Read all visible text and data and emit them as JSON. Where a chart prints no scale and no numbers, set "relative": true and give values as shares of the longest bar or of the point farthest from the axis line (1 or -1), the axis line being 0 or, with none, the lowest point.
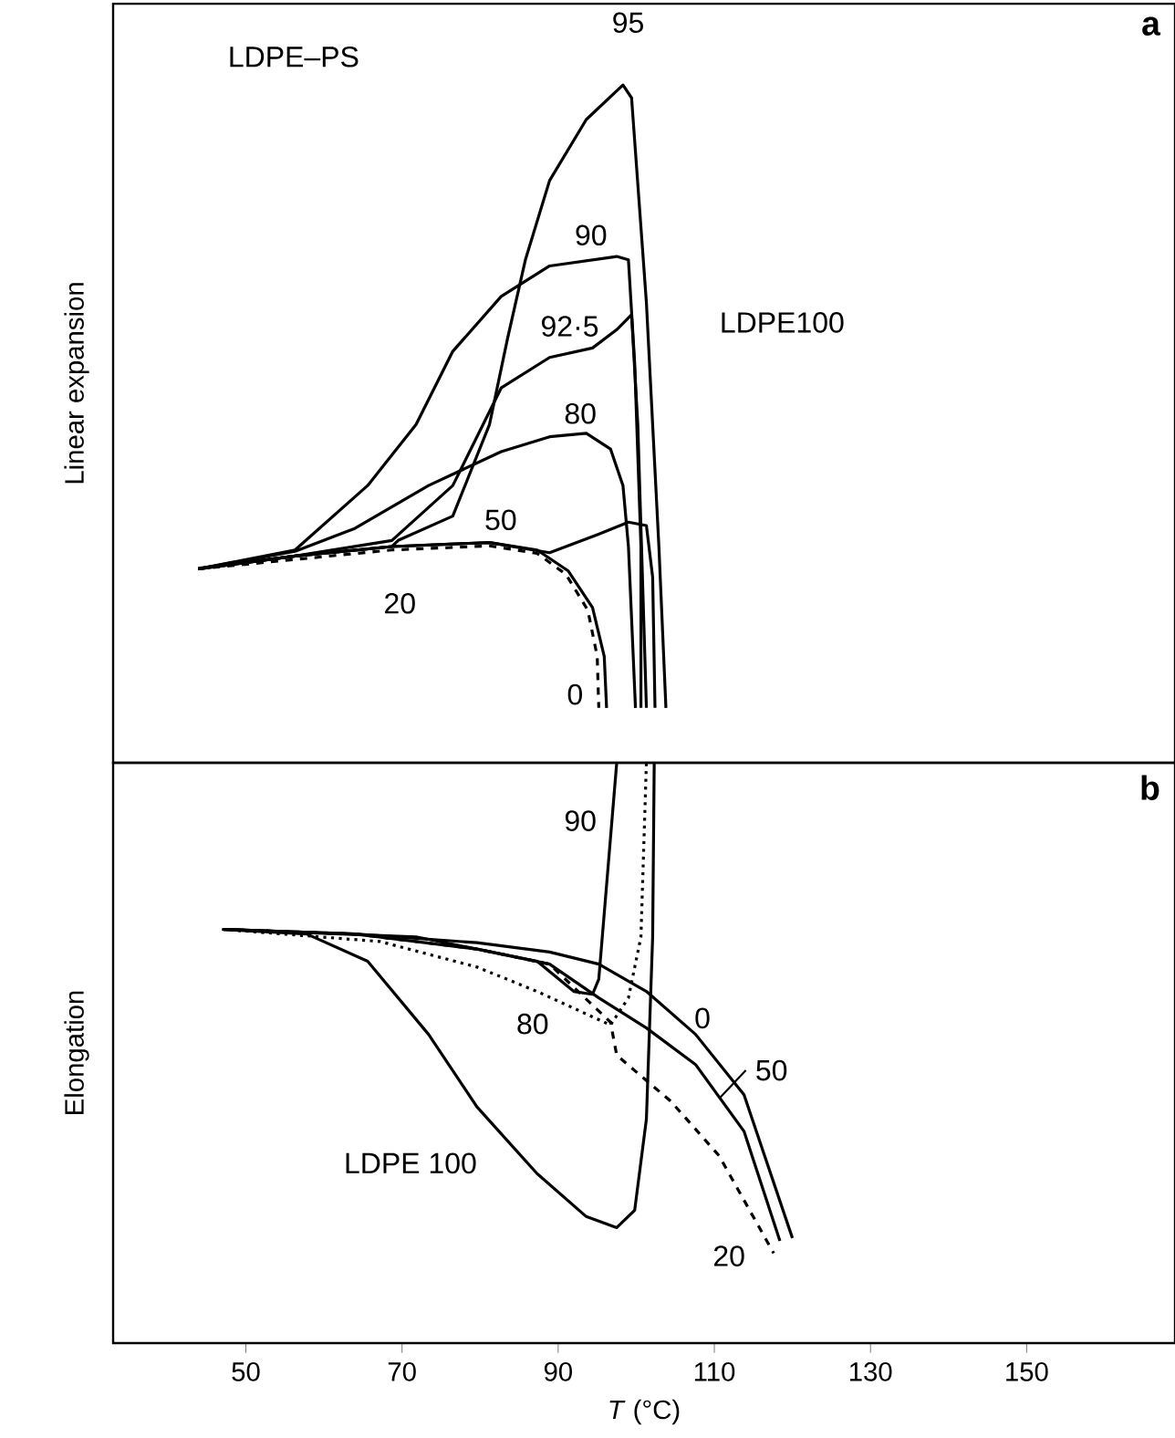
{
  "chart_data": [
    {
      "type": "line",
      "title": "a",
      "ylabel": "Linear expansion",
      "relative": true,
      "xlim": [
        33,
        169
      ],
      "xticks": [
        50,
        70,
        90,
        110,
        130,
        150
      ],
      "tick_labels": false,
      "grid": false,
      "series": [
        {
          "name": "95",
          "color": "#000000",
          "line_style": "solid",
          "x": [
            43.9,
            56.3,
            68.7,
            69.5,
            76.5,
            81.2,
            83.5,
            85.8,
            88.9,
            93.6,
            98.3,
            99.4,
            101.3,
            102.9,
            103.8
          ],
          "values": [
            0.286,
            0.305,
            0.319,
            0.328,
            0.364,
            0.499,
            0.625,
            0.742,
            0.859,
            0.949,
            1.0,
            0.981,
            0.679,
            0.319,
            0.081
          ]
        },
        {
          "name": "90",
          "color": "#000000",
          "line_style": "solid",
          "x": [
            43.9,
            56.3,
            65.6,
            71.8,
            76.5,
            82.7,
            88.9,
            97.5,
            99.0,
            99.8,
            100.6,
            100.6
          ],
          "values": [
            0.286,
            0.314,
            0.409,
            0.499,
            0.607,
            0.688,
            0.733,
            0.747,
            0.742,
            0.589,
            0.319,
            0.081
          ]
        },
        {
          "name": "92·5",
          "color": "#000000",
          "line_style": "solid",
          "x": [
            43.9,
            56.3,
            68.7,
            76.5,
            82.7,
            88.9,
            94.4,
            97.5,
            99.4,
            100.2,
            101.3
          ],
          "values": [
            0.286,
            0.305,
            0.328,
            0.409,
            0.553,
            0.598,
            0.612,
            0.639,
            0.661,
            0.499,
            0.081
          ]
        },
        {
          "name": "80",
          "color": "#000000",
          "line_style": "solid",
          "x": [
            43.9,
            56.3,
            64.0,
            73.4,
            82.7,
            88.9,
            93.6,
            96.7,
            98.3,
            99.0,
            99.9
          ],
          "values": [
            0.286,
            0.312,
            0.346,
            0.409,
            0.459,
            0.481,
            0.486,
            0.463,
            0.409,
            0.319,
            0.081
          ]
        },
        {
          "name": "50",
          "color": "#000000",
          "line_style": "solid",
          "x": [
            43.9,
            56.3,
            68.7,
            81.2,
            88.9,
            95.1,
            99.0,
            101.3,
            102.1,
            102.4
          ],
          "values": [
            0.286,
            0.305,
            0.319,
            0.325,
            0.31,
            0.337,
            0.355,
            0.35,
            0.274,
            0.081
          ]
        },
        {
          "name": "20",
          "color": "#000000",
          "line_style": "dashed",
          "x": [
            43.9,
            56.3,
            68.7,
            81.2,
            87.3,
            91.0,
            93.8,
            95.0,
            95.2
          ],
          "values": [
            0.286,
            0.3,
            0.314,
            0.32,
            0.309,
            0.278,
            0.225,
            0.157,
            0.081
          ]
        },
        {
          "name": "0",
          "color": "#000000",
          "line_style": "solid",
          "x": [
            43.9,
            56.3,
            68.7,
            81.2,
            87.3,
            91.3,
            94.4,
            95.9,
            96.2
          ],
          "values": [
            0.287,
            0.305,
            0.319,
            0.325,
            0.314,
            0.283,
            0.229,
            0.157,
            0.081
          ]
        }
      ],
      "annotations": [
        "LDPE–PS",
        "LDPE100"
      ]
    },
    {
      "type": "line",
      "title": "b",
      "ylabel": "Elongation",
      "xlabel": "*T* (°C)",
      "relative": true,
      "xlim": [
        33,
        169
      ],
      "xticks": [
        50,
        70,
        90,
        110,
        130,
        150
      ],
      "tick_labels": "x",
      "grid": false,
      "series": [
        {
          "name": "0",
          "color": "#000000",
          "line_style": "solid",
          "x": [
            47.0,
            64.0,
            79.6,
            88.9,
            95.2,
            101.3,
            107.6,
            113.8,
            120.0
          ],
          "values": [
            0.713,
            0.705,
            0.69,
            0.674,
            0.653,
            0.606,
            0.532,
            0.428,
            0.181
          ]
        },
        {
          "name": "50",
          "color": "#000000",
          "line_style": "solid",
          "x": [
            47.0,
            64.0,
            79.6,
            88.9,
            95.2,
            101.3,
            107.6,
            113.8,
            118.4
          ],
          "values": [
            0.713,
            0.705,
            0.679,
            0.653,
            0.595,
            0.543,
            0.48,
            0.365,
            0.176
          ]
        },
        {
          "name": "20",
          "color": "#000000",
          "line_style": "dashed",
          "x": [
            47.0,
            64.0,
            79.6,
            88.9,
            96.7,
            97.5,
            104.4,
            110.6,
            117.6
          ],
          "values": [
            0.713,
            0.705,
            0.679,
            0.653,
            0.553,
            0.496,
            0.417,
            0.323,
            0.155
          ]
        },
        {
          "name": "80",
          "color": "#000000",
          "line_style": "dotted",
          "x": [
            47.0,
            67.2,
            79.6,
            87.3,
            96.7,
            99.0,
            100.6,
            101.3
          ],
          "values": [
            0.713,
            0.692,
            0.648,
            0.606,
            0.548,
            0.595,
            0.7,
            1.0
          ]
        },
        {
          "name": "90",
          "color": "#000000",
          "line_style": "solid",
          "x": [
            47.0,
            71.8,
            87.3,
            92.0,
            94.4,
            95.2,
            97.5
          ],
          "values": [
            0.713,
            0.7,
            0.658,
            0.606,
            0.601,
            0.627,
            1.0
          ]
        },
        {
          "name": "LDPE 100",
          "color": "#000000",
          "line_style": "solid",
          "x": [
            47.0,
            57.8,
            65.6,
            73.4,
            79.6,
            87.3,
            93.6,
            97.5,
            99.8,
            101.3,
            102.1,
            102.3
          ],
          "values": [
            0.713,
            0.705,
            0.658,
            0.532,
            0.407,
            0.292,
            0.218,
            0.199,
            0.229,
            0.386,
            0.7,
            1.0
          ]
        }
      ]
    }
  ]
}
